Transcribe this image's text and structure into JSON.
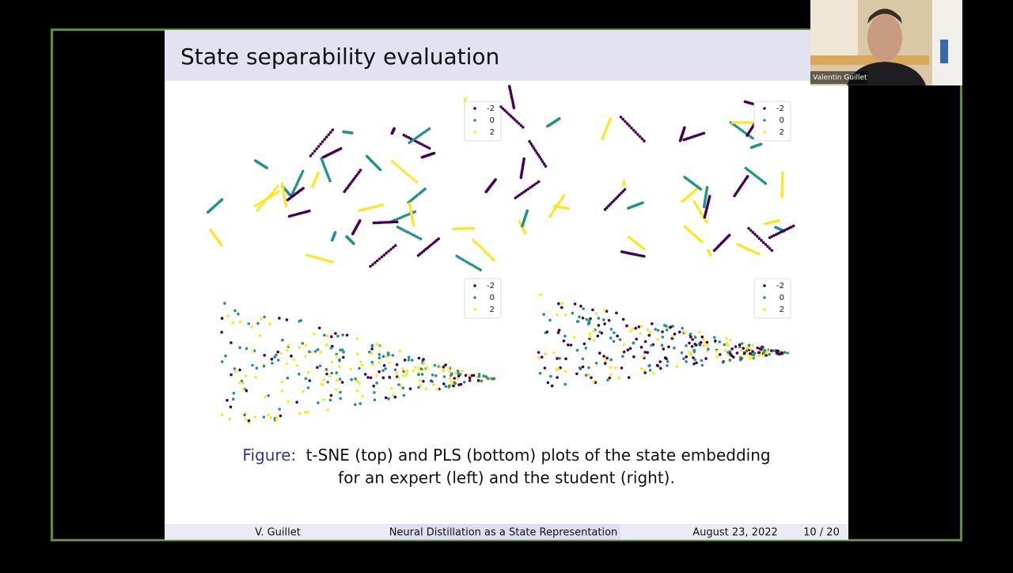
{
  "slide": {
    "title": "State separability evaluation",
    "plots": [
      {
        "legend": [
          "-2",
          "0",
          "2"
        ]
      },
      {
        "legend": [
          "-2",
          "0",
          "2"
        ]
      },
      {
        "legend": [
          "-2",
          "0",
          "2"
        ]
      },
      {
        "legend": [
          "-2",
          "0",
          "2"
        ]
      }
    ],
    "caption": {
      "label": "Figure:",
      "line1": "t-SNE (top) and PLS (bottom) plots of the state embedding",
      "line2": "for an expert (left) and the student (right)."
    },
    "footer": {
      "author": "V. Guillet",
      "title": "Neural Distillation as a State Representation",
      "date": "August 23, 2022",
      "page": "10 / 20"
    }
  },
  "participant": {
    "name": "Valentin Guillet"
  }
}
